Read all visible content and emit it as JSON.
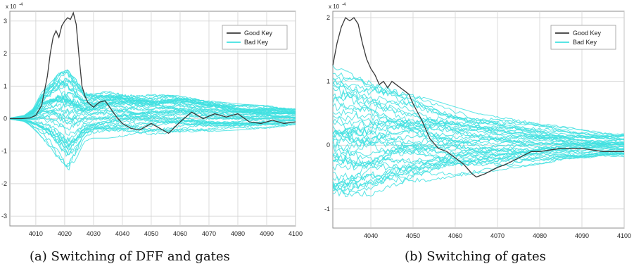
{
  "captions": {
    "a": "(a) Switching of DFF and gates",
    "b": "(b) Switching of gates"
  },
  "colors": {
    "good": "#3a3a3a",
    "bad": "#40e0e0",
    "grid": "#d2d2d2",
    "axis": "#8c8c8c"
  },
  "chart_data": [
    {
      "type": "line",
      "title": "",
      "xlabel": "",
      "ylabel": "",
      "exponent_label": "x 10",
      "exponent_power": "-4",
      "xlim": [
        4001,
        4100
      ],
      "ylim": [
        -3.3,
        3.3
      ],
      "xticks": [
        4010,
        4020,
        4030,
        4040,
        4050,
        4060,
        4070,
        4080,
        4090,
        4100
      ],
      "yticks": [
        -3,
        -2,
        -1,
        0,
        1,
        2,
        3
      ],
      "grid": true,
      "legend": {
        "position": "top-right",
        "entries": [
          "Good Key",
          "Bad Key"
        ]
      },
      "series": [
        {
          "name": "Good Key",
          "x": [
            4001,
            4005,
            4008,
            4010,
            4012,
            4014,
            4015,
            4016,
            4017,
            4018,
            4019,
            4020,
            4021,
            4022,
            4023,
            4024,
            4025,
            4026,
            4027,
            4028,
            4030,
            4032,
            4034,
            4036,
            4038,
            4040,
            4043,
            4046,
            4050,
            4053,
            4056,
            4060,
            4064,
            4068,
            4072,
            4076,
            4080,
            4084,
            4088,
            4092,
            4096,
            4100
          ],
          "y": [
            0,
            0,
            0.02,
            0.1,
            0.4,
            1.3,
            2.0,
            2.5,
            2.7,
            2.5,
            2.85,
            3.0,
            3.1,
            3.05,
            3.25,
            2.9,
            1.9,
            1.0,
            0.7,
            0.5,
            0.35,
            0.5,
            0.55,
            0.3,
            0.05,
            -0.15,
            -0.3,
            -0.35,
            -0.15,
            -0.3,
            -0.45,
            -0.1,
            0.2,
            0.0,
            0.15,
            0.05,
            0.15,
            -0.1,
            -0.15,
            -0.05,
            -0.15,
            -0.1
          ]
        }
      ],
      "bad_key_curves": {
        "name": "Bad Key",
        "count": 46,
        "note": "dense band of cyan traces"
      },
      "bad_key_band": {
        "x": [
          4001,
          4006,
          4009,
          4012,
          4015,
          4018,
          4021,
          4024,
          4027,
          4030,
          4035,
          4040,
          4045,
          4050,
          4060,
          4070,
          4080,
          4090,
          4100
        ],
        "lo": [
          -0.02,
          -0.1,
          -0.3,
          -0.6,
          -0.9,
          -1.3,
          -1.7,
          -1.3,
          -0.7,
          -0.6,
          -0.6,
          -0.55,
          -0.5,
          -0.5,
          -0.45,
          -0.4,
          -0.35,
          -0.3,
          -0.25
        ],
        "hi": [
          0.02,
          0.1,
          0.3,
          0.8,
          1.1,
          1.4,
          1.5,
          1.2,
          0.8,
          0.8,
          0.9,
          0.9,
          0.8,
          0.75,
          0.7,
          0.55,
          0.45,
          0.4,
          0.3
        ]
      }
    },
    {
      "type": "line",
      "title": "",
      "xlabel": "",
      "ylabel": "",
      "exponent_label": "x 10",
      "exponent_power": "-4",
      "xlim": [
        4031,
        4100
      ],
      "ylim": [
        -1.3,
        2.1
      ],
      "xticks": [
        4040,
        4050,
        4060,
        4070,
        4080,
        4090,
        4100
      ],
      "yticks": [
        -1,
        0,
        1,
        2
      ],
      "grid": true,
      "legend": {
        "position": "top-right",
        "entries": [
          "Good Key",
          "Bad Key"
        ]
      },
      "series": [
        {
          "name": "Good Key",
          "x": [
            4031,
            4032,
            4033,
            4034,
            4035,
            4036,
            4037,
            4038,
            4039,
            4040,
            4041,
            4042,
            4043,
            4044,
            4045,
            4046,
            4047,
            4048,
            4049,
            4050,
            4052,
            4054,
            4056,
            4058,
            4060,
            4062,
            4064,
            4065,
            4067,
            4070,
            4072,
            4075,
            4078,
            4080,
            4085,
            4090,
            4095,
            4100
          ],
          "y": [
            1.25,
            1.6,
            1.85,
            2.0,
            1.95,
            2.0,
            1.9,
            1.6,
            1.35,
            1.2,
            1.1,
            0.95,
            1.0,
            0.9,
            1.0,
            0.95,
            0.9,
            0.85,
            0.8,
            0.65,
            0.4,
            0.1,
            -0.05,
            -0.1,
            -0.2,
            -0.3,
            -0.45,
            -0.5,
            -0.45,
            -0.35,
            -0.3,
            -0.2,
            -0.1,
            -0.1,
            -0.05,
            -0.05,
            -0.1,
            -0.1
          ]
        }
      ],
      "bad_key_curves": {
        "name": "Bad Key",
        "count": 44,
        "note": "dense band of cyan traces"
      },
      "bad_key_band": {
        "x": [
          4031,
          4035,
          4040,
          4045,
          4050,
          4055,
          4060,
          4065,
          4070,
          4075,
          4080,
          4085,
          4090,
          4095,
          4100
        ],
        "lo": [
          -1.0,
          -0.95,
          -0.8,
          -0.65,
          -0.6,
          -0.55,
          -0.5,
          -0.45,
          -0.4,
          -0.35,
          -0.3,
          -0.25,
          -0.25,
          -0.2,
          -0.2
        ],
        "hi": [
          1.25,
          1.15,
          1.0,
          0.9,
          0.8,
          0.7,
          0.6,
          0.5,
          0.45,
          0.4,
          0.35,
          0.3,
          0.25,
          0.2,
          0.2
        ]
      }
    }
  ]
}
